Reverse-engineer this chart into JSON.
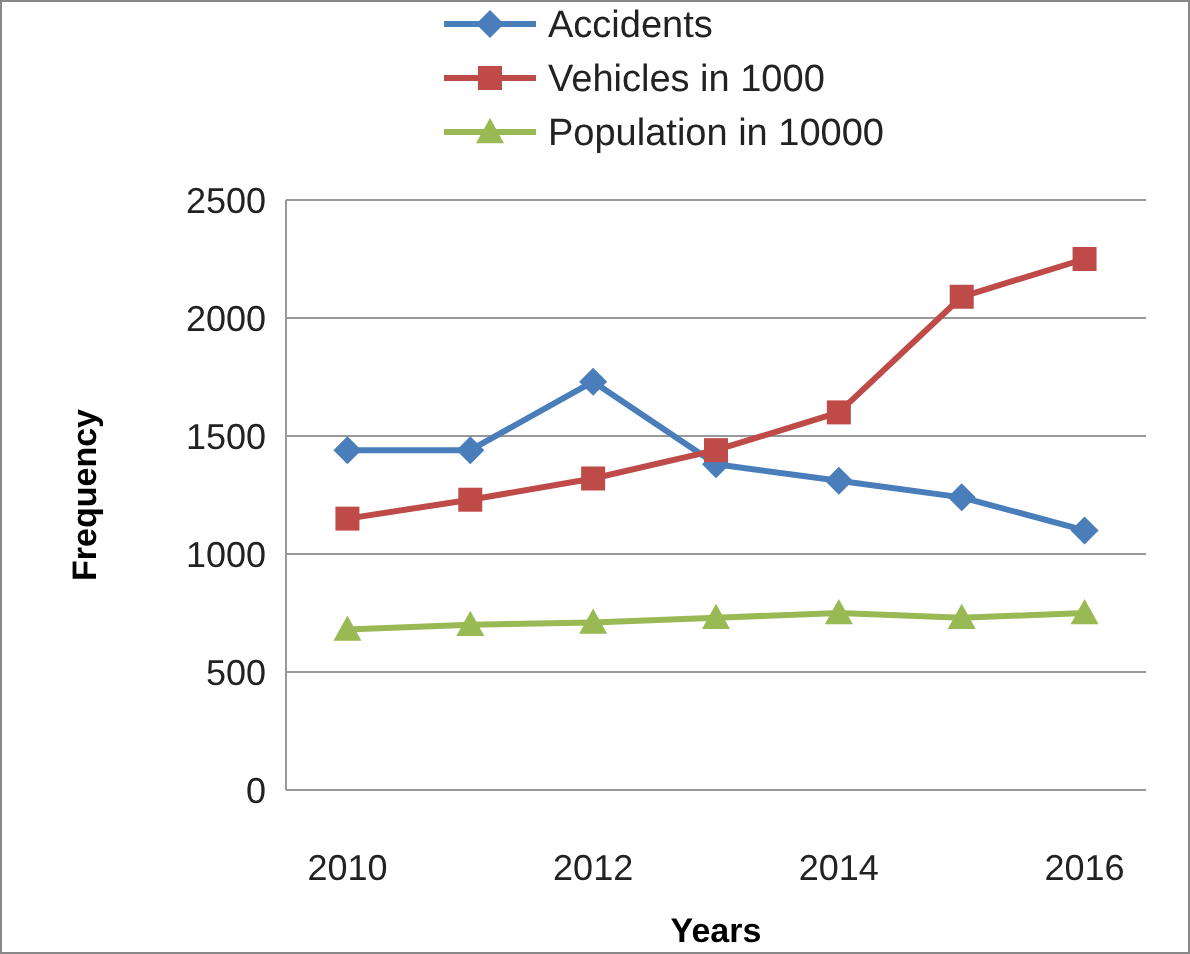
{
  "chart_data": {
    "type": "line",
    "xlabel": "Years",
    "ylabel": "Frequency",
    "categories": [
      "2010",
      null,
      "2012",
      null,
      "2014",
      null,
      "2016"
    ],
    "series": [
      {
        "name": "Accidents",
        "color": "#4a7ebb",
        "marker": "diamond",
        "values": [
          1440,
          1440,
          1730,
          1380,
          1310,
          1240,
          1100
        ]
      },
      {
        "name": "Vehicles in 1000",
        "color": "#be4b48",
        "marker": "square",
        "values": [
          1150,
          1230,
          1320,
          1440,
          1600,
          2090,
          2250
        ]
      },
      {
        "name": "Population in 10000",
        "color": "#98b954",
        "marker": "triangle",
        "values": [
          680,
          700,
          710,
          730,
          750,
          730,
          750
        ]
      }
    ],
    "ylim": [
      0,
      2500
    ],
    "yticks": [
      0,
      500,
      1000,
      1500,
      2000,
      2500
    ],
    "grid": "y",
    "legend": "top",
    "line_style": "solid"
  }
}
